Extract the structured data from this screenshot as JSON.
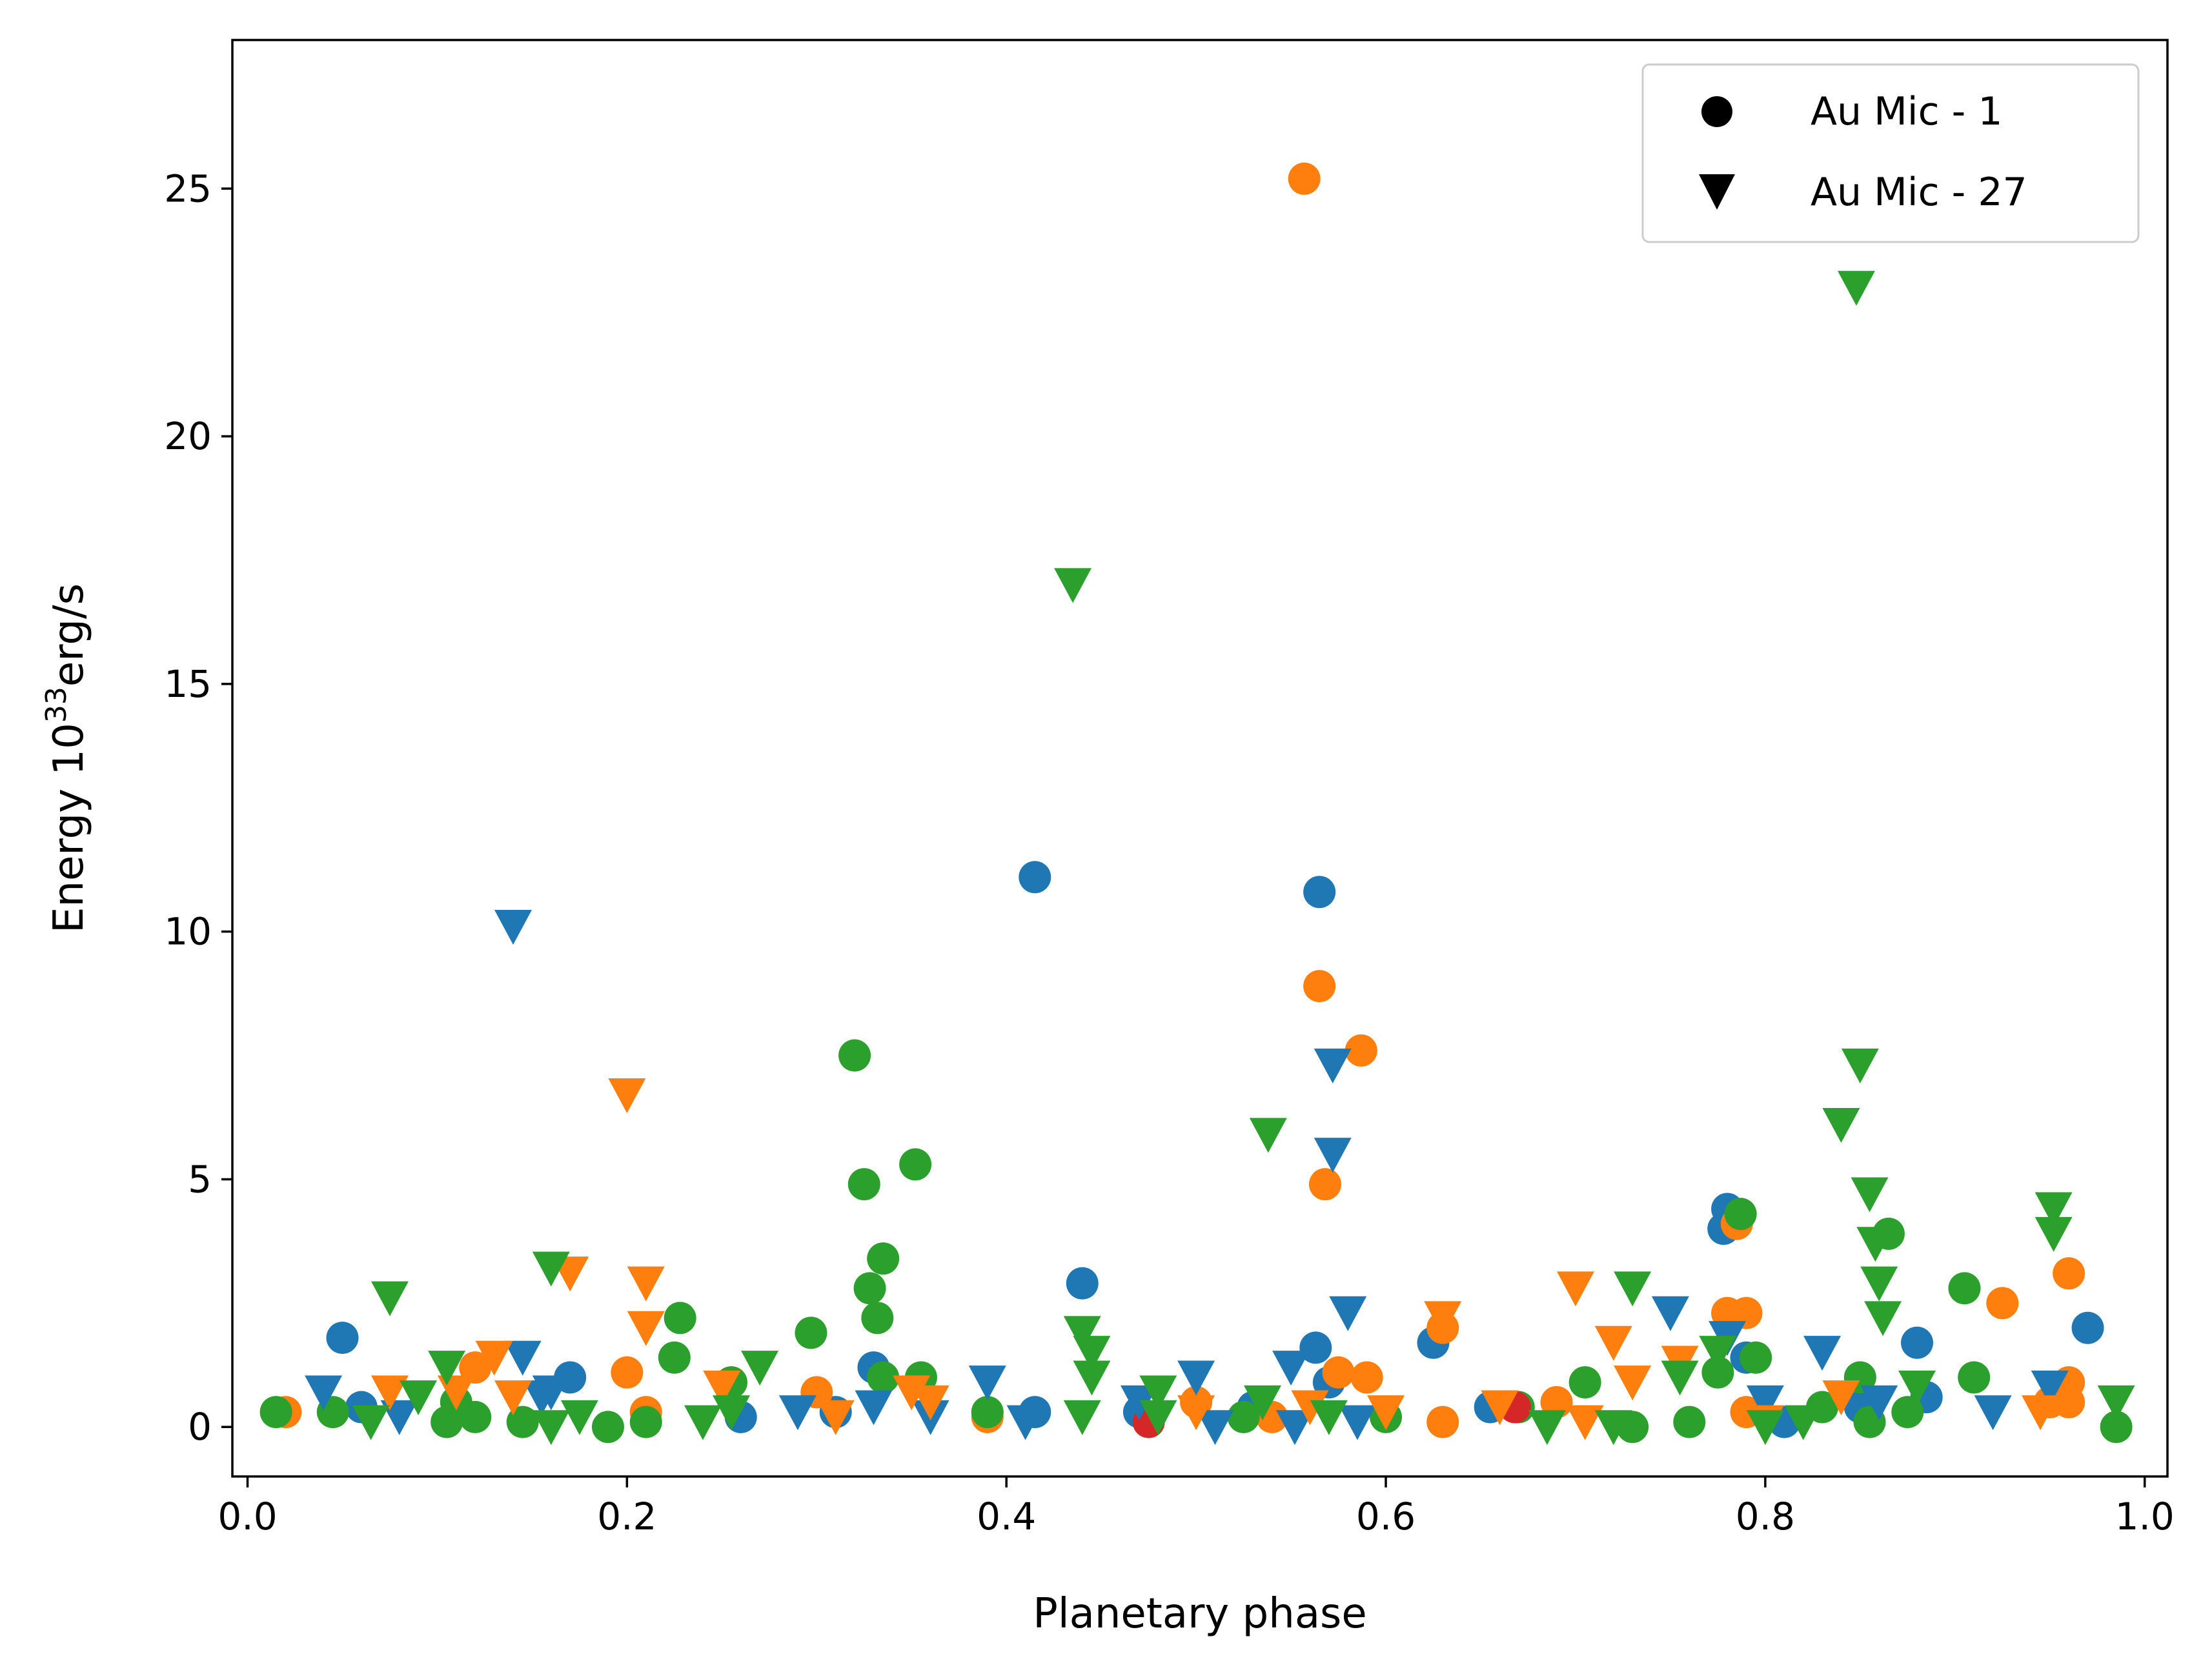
{
  "chart_data": {
    "type": "scatter",
    "title": "",
    "xlabel": "Planetary phase",
    "ylabel_main": "Energy 10",
    "ylabel_exp": "33",
    "ylabel_unit": "erg/s",
    "xlim": [
      -0.008,
      1.012
    ],
    "ylim": [
      -1.0,
      28.0
    ],
    "xticks": [
      0.0,
      0.2,
      0.4,
      0.6,
      0.8,
      1.0
    ],
    "xtick_labels": [
      "0.0",
      "0.2",
      "0.4",
      "0.6",
      "0.8",
      "1.0"
    ],
    "yticks": [
      0,
      5,
      10,
      15,
      20,
      25
    ],
    "ytick_labels": [
      "0",
      "5",
      "10",
      "15",
      "20",
      "25"
    ],
    "legend_position": "top-right",
    "legend": [
      {
        "marker": "circle",
        "label": "Au Mic - 1"
      },
      {
        "marker": "triangle-down",
        "label": "Au Mic - 27"
      }
    ],
    "colors": {
      "blue": "#1f77b4",
      "orange": "#ff7f0e",
      "green": "#2ca02c",
      "red": "#d62728"
    },
    "series": [
      {
        "name": "Au Mic - 1",
        "color": "blue",
        "marker": "circle",
        "points": [
          [
            0.05,
            1.8
          ],
          [
            0.06,
            0.4
          ],
          [
            0.17,
            1.0
          ],
          [
            0.26,
            0.2
          ],
          [
            0.31,
            0.3
          ],
          [
            0.33,
            1.2
          ],
          [
            0.415,
            11.1
          ],
          [
            0.415,
            0.3
          ],
          [
            0.44,
            2.9
          ],
          [
            0.47,
            0.3
          ],
          [
            0.53,
            0.4
          ],
          [
            0.565,
            10.8
          ],
          [
            0.563,
            1.6
          ],
          [
            0.57,
            0.9
          ],
          [
            0.625,
            1.7
          ],
          [
            0.655,
            0.4
          ],
          [
            0.78,
            4.4
          ],
          [
            0.778,
            4.0
          ],
          [
            0.79,
            1.4
          ],
          [
            0.81,
            0.1
          ],
          [
            0.85,
            0.4
          ],
          [
            0.88,
            1.7
          ],
          [
            0.885,
            0.6
          ],
          [
            0.97,
            2.0
          ]
        ]
      },
      {
        "name": "Au Mic - 1",
        "color": "orange",
        "marker": "circle",
        "points": [
          [
            0.02,
            0.3
          ],
          [
            0.12,
            1.2
          ],
          [
            0.2,
            1.1
          ],
          [
            0.21,
            0.3
          ],
          [
            0.3,
            0.7
          ],
          [
            0.39,
            0.2
          ],
          [
            0.5,
            0.5
          ],
          [
            0.54,
            0.2
          ],
          [
            0.557,
            25.2
          ],
          [
            0.565,
            8.9
          ],
          [
            0.587,
            7.6
          ],
          [
            0.568,
            4.9
          ],
          [
            0.575,
            1.1
          ],
          [
            0.59,
            1.0
          ],
          [
            0.63,
            0.1
          ],
          [
            0.63,
            2.0
          ],
          [
            0.69,
            0.5
          ],
          [
            0.78,
            2.3
          ],
          [
            0.79,
            2.3
          ],
          [
            0.785,
            4.1
          ],
          [
            0.79,
            0.3
          ],
          [
            0.925,
            2.5
          ],
          [
            0.96,
            3.1
          ],
          [
            0.96,
            0.9
          ],
          [
            0.96,
            0.5
          ],
          [
            0.95,
            0.5
          ]
        ]
      },
      {
        "name": "Au Mic - 1",
        "color": "green",
        "marker": "circle",
        "points": [
          [
            0.015,
            0.3
          ],
          [
            0.045,
            0.3
          ],
          [
            0.105,
            0.1
          ],
          [
            0.11,
            0.5
          ],
          [
            0.12,
            0.2
          ],
          [
            0.145,
            0.1
          ],
          [
            0.19,
            0.0
          ],
          [
            0.21,
            0.1
          ],
          [
            0.225,
            1.4
          ],
          [
            0.228,
            2.2
          ],
          [
            0.255,
            0.9
          ],
          [
            0.297,
            1.9
          ],
          [
            0.32,
            7.5
          ],
          [
            0.325,
            4.9
          ],
          [
            0.328,
            2.8
          ],
          [
            0.332,
            2.2
          ],
          [
            0.335,
            3.4
          ],
          [
            0.335,
            1.0
          ],
          [
            0.352,
            5.3
          ],
          [
            0.355,
            1.0
          ],
          [
            0.39,
            0.3
          ],
          [
            0.525,
            0.2
          ],
          [
            0.6,
            0.2
          ],
          [
            0.67,
            0.4
          ],
          [
            0.705,
            0.9
          ],
          [
            0.73,
            0.0
          ],
          [
            0.76,
            0.1
          ],
          [
            0.775,
            1.1
          ],
          [
            0.787,
            4.3
          ],
          [
            0.795,
            1.4
          ],
          [
            0.83,
            0.4
          ],
          [
            0.85,
            1.0
          ],
          [
            0.855,
            0.1
          ],
          [
            0.865,
            3.9
          ],
          [
            0.875,
            0.3
          ],
          [
            0.905,
            2.8
          ],
          [
            0.91,
            1.0
          ],
          [
            0.985,
            0.0
          ]
        ]
      },
      {
        "name": "Au Mic - 1",
        "color": "red",
        "marker": "circle",
        "points": [
          [
            0.475,
            0.1
          ],
          [
            0.668,
            0.4
          ]
        ]
      },
      {
        "name": "Au Mic - 27",
        "color": "blue",
        "marker": "triangle-down",
        "points": [
          [
            0.04,
            0.7
          ],
          [
            0.08,
            0.2
          ],
          [
            0.14,
            10.1
          ],
          [
            0.145,
            1.4
          ],
          [
            0.155,
            0.6
          ],
          [
            0.16,
            0.7
          ],
          [
            0.29,
            0.3
          ],
          [
            0.33,
            0.4
          ],
          [
            0.36,
            0.2
          ],
          [
            0.39,
            0.9
          ],
          [
            0.41,
            0.1
          ],
          [
            0.47,
            0.5
          ],
          [
            0.5,
            1.0
          ],
          [
            0.51,
            0.0
          ],
          [
            0.55,
            1.2
          ],
          [
            0.552,
            0.0
          ],
          [
            0.572,
            7.3
          ],
          [
            0.572,
            5.5
          ],
          [
            0.58,
            2.3
          ],
          [
            0.585,
            0.1
          ],
          [
            0.75,
            2.3
          ],
          [
            0.78,
            1.8
          ],
          [
            0.8,
            0.5
          ],
          [
            0.83,
            1.5
          ],
          [
            0.86,
            0.5
          ],
          [
            0.92,
            0.3
          ],
          [
            0.95,
            0.8
          ]
        ]
      },
      {
        "name": "Au Mic - 27",
        "color": "orange",
        "marker": "triangle-down",
        "points": [
          [
            0.075,
            0.7
          ],
          [
            0.11,
            0.7
          ],
          [
            0.13,
            1.4
          ],
          [
            0.14,
            0.6
          ],
          [
            0.17,
            3.1
          ],
          [
            0.2,
            6.7
          ],
          [
            0.21,
            2.9
          ],
          [
            0.21,
            2.0
          ],
          [
            0.25,
            0.8
          ],
          [
            0.31,
            0.2
          ],
          [
            0.35,
            0.7
          ],
          [
            0.36,
            0.5
          ],
          [
            0.5,
            0.3
          ],
          [
            0.56,
            0.4
          ],
          [
            0.6,
            0.3
          ],
          [
            0.63,
            2.2
          ],
          [
            0.66,
            0.4
          ],
          [
            0.7,
            2.8
          ],
          [
            0.705,
            0.1
          ],
          [
            0.72,
            1.7
          ],
          [
            0.73,
            0.9
          ],
          [
            0.755,
            1.3
          ],
          [
            0.8,
            0.1
          ],
          [
            0.84,
            0.6
          ],
          [
            0.945,
            0.3
          ]
        ]
      },
      {
        "name": "Au Mic - 27",
        "color": "green",
        "marker": "triangle-down",
        "points": [
          [
            0.065,
            0.1
          ],
          [
            0.075,
            2.6
          ],
          [
            0.09,
            0.6
          ],
          [
            0.105,
            1.2
          ],
          [
            0.16,
            3.2
          ],
          [
            0.16,
            0.0
          ],
          [
            0.175,
            0.2
          ],
          [
            0.24,
            0.1
          ],
          [
            0.255,
            0.3
          ],
          [
            0.27,
            1.2
          ],
          [
            0.435,
            17.0
          ],
          [
            0.44,
            0.2
          ],
          [
            0.44,
            1.9
          ],
          [
            0.445,
            1.0
          ],
          [
            0.445,
            1.5
          ],
          [
            0.48,
            0.7
          ],
          [
            0.48,
            0.2
          ],
          [
            0.535,
            0.5
          ],
          [
            0.538,
            5.9
          ],
          [
            0.57,
            0.2
          ],
          [
            0.685,
            0.0
          ],
          [
            0.72,
            0.0
          ],
          [
            0.73,
            2.8
          ],
          [
            0.755,
            1.0
          ],
          [
            0.775,
            1.5
          ],
          [
            0.8,
            0.0
          ],
          [
            0.82,
            0.1
          ],
          [
            0.84,
            6.1
          ],
          [
            0.848,
            23.0
          ],
          [
            0.85,
            7.3
          ],
          [
            0.855,
            4.7
          ],
          [
            0.858,
            3.7
          ],
          [
            0.86,
            2.9
          ],
          [
            0.862,
            2.2
          ],
          [
            0.88,
            0.8
          ],
          [
            0.952,
            4.4
          ],
          [
            0.952,
            3.9
          ],
          [
            0.985,
            0.5
          ]
        ]
      }
    ]
  }
}
